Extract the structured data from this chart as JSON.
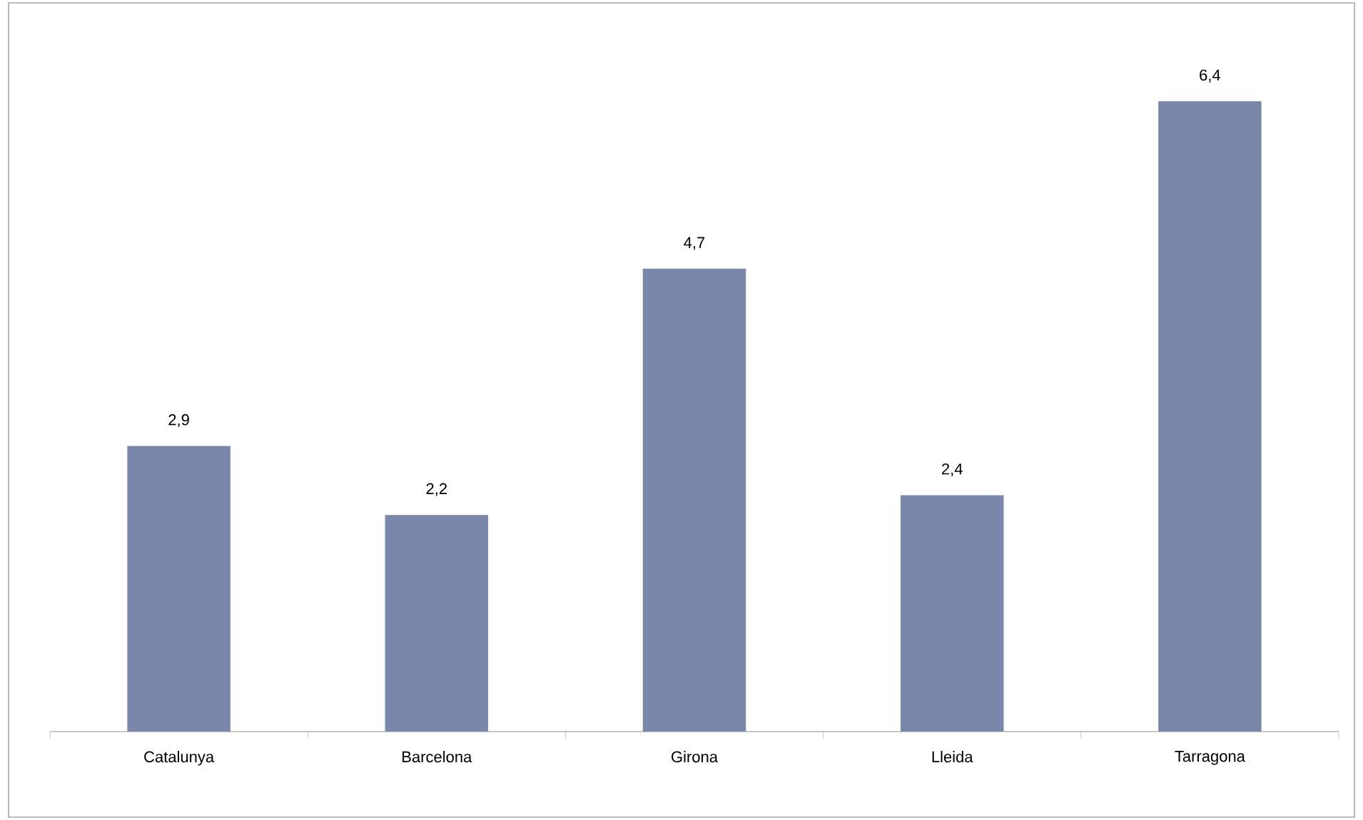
{
  "chart_data": {
    "type": "bar",
    "categories": [
      "Catalunya",
      "Barcelona",
      "Girona",
      "Lleida",
      "Tarragona"
    ],
    "values": [
      2.9,
      2.2,
      4.7,
      2.4,
      6.4
    ],
    "value_labels": [
      "2,9",
      "2,2",
      "4,7",
      "2,4",
      "6,4"
    ],
    "color": "#7a87ab"
  }
}
